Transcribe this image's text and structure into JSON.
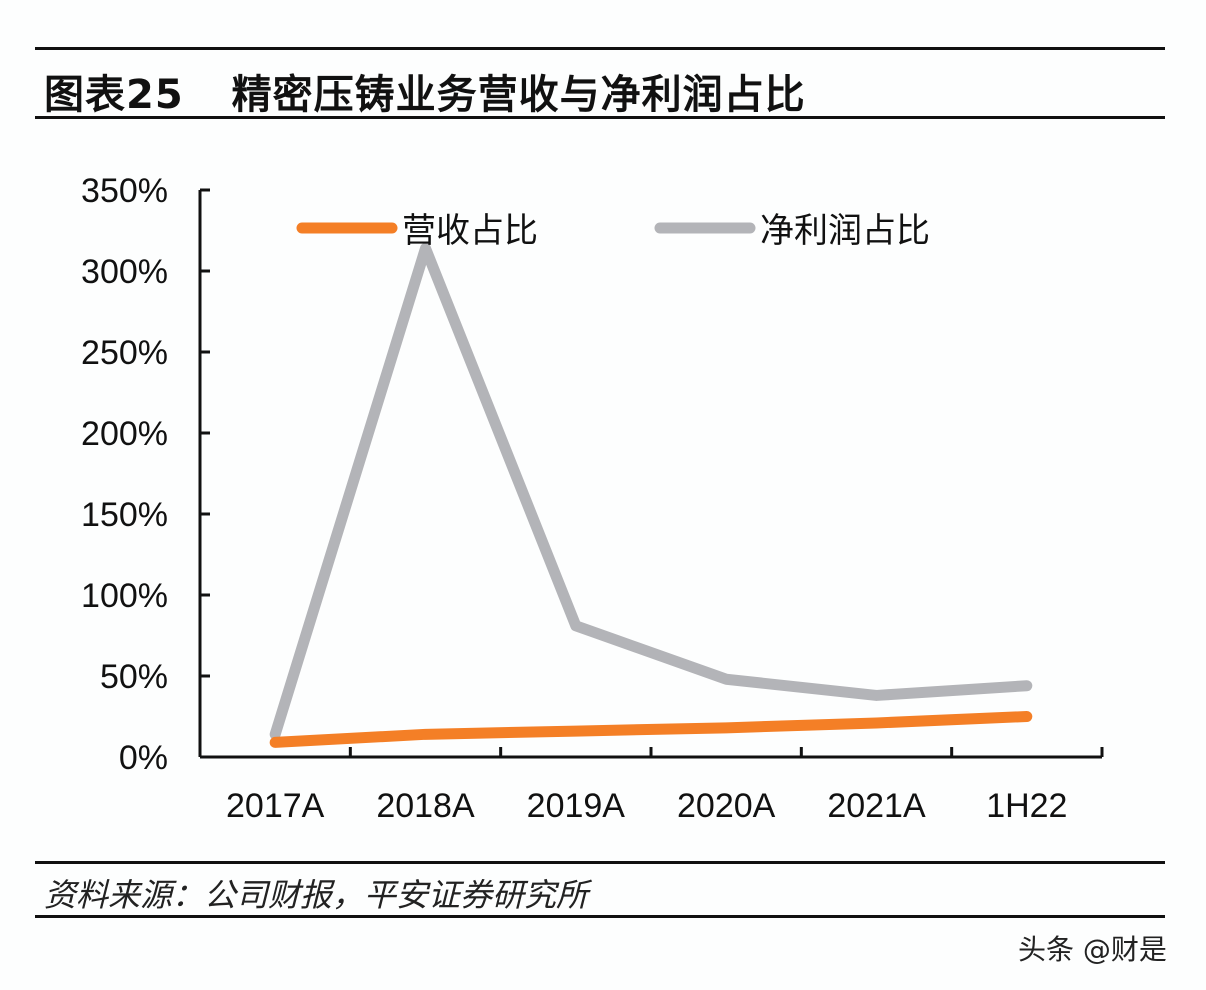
{
  "header": {
    "figure_no": "图表25",
    "title": "精密压铸业务营收与净利润占比"
  },
  "footer": {
    "source": "资料来源：公司财报，平安证券研究所",
    "watermark": "头条 @财是"
  },
  "chart_data": {
    "type": "line",
    "categories": [
      "2017A",
      "2018A",
      "2019A",
      "2020A",
      "2021A",
      "1H22"
    ],
    "ylim": [
      0,
      350
    ],
    "yticks": [
      "0%",
      "50%",
      "100%",
      "150%",
      "200%",
      "250%",
      "300%",
      "350%"
    ],
    "legend_placement": "top",
    "grid": false,
    "series": [
      {
        "name": "营收占比",
        "color": "#f47f26",
        "values": [
          9,
          14,
          16,
          18,
          21,
          25
        ]
      },
      {
        "name": "净利润占比",
        "color": "#b3b4b8",
        "values": [
          14,
          314,
          81,
          48,
          38,
          44
        ]
      }
    ]
  }
}
